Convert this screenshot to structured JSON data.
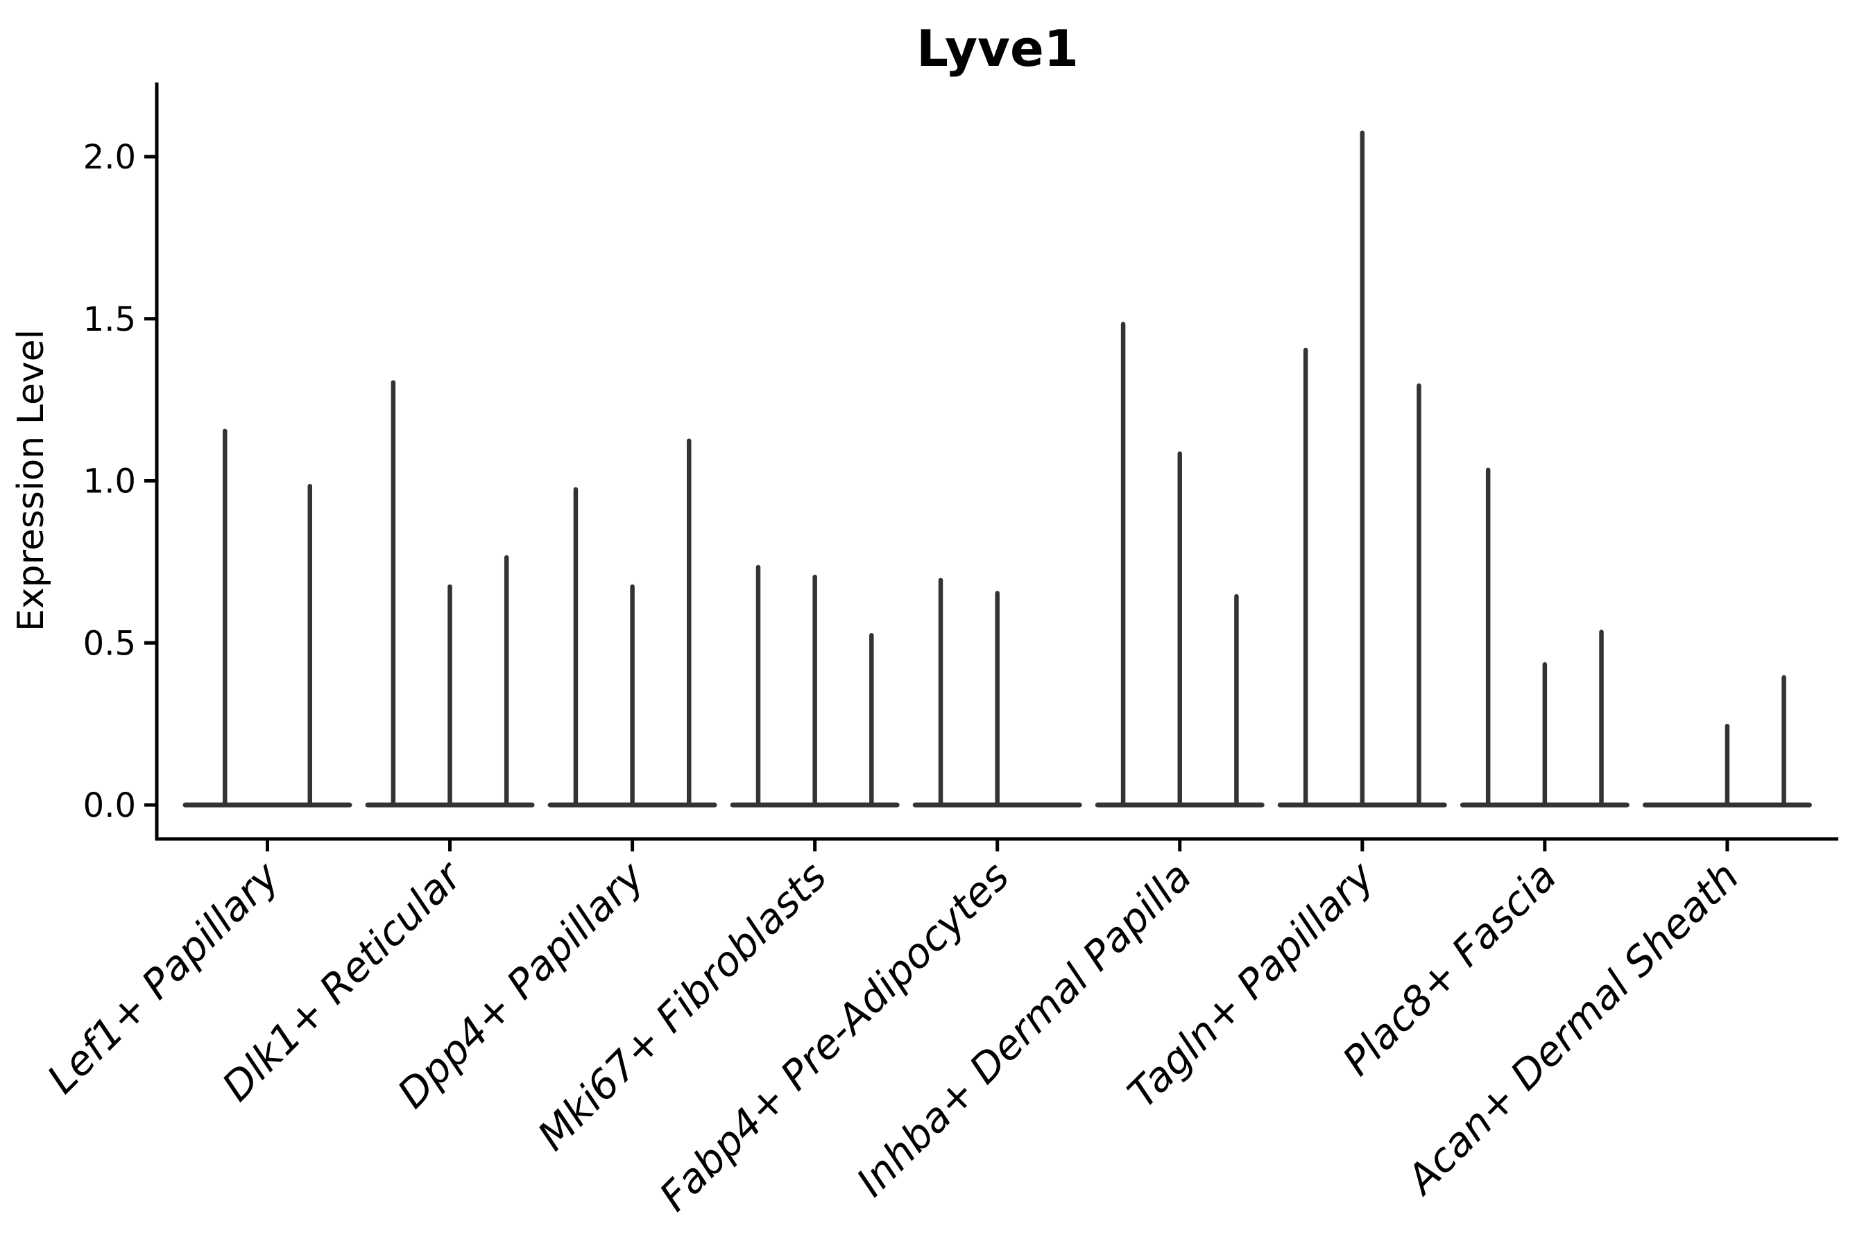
{
  "chart_data": {
    "type": "violin",
    "title": "Lyve1",
    "xlabel": "",
    "ylabel": "Expression Level",
    "ylim": [
      -0.11,
      2.23
    ],
    "yticks": [
      0.0,
      0.5,
      1.0,
      1.5,
      2.0
    ],
    "ytick_labels": [
      "0.0",
      "0.5",
      "1.0",
      "1.5",
      "2.0"
    ],
    "grid": false,
    "legend": "none",
    "categories": [
      "Lef1+ Papillary",
      "Dlk1+ Reticular",
      "Dpp4+ Papillary",
      "Mki67+ Fibroblasts",
      "Fabp4+ Pre-Adipocytes",
      "Inhba+ Dermal Papilla",
      "Tagln+ Papillary",
      "Plac8+ Fascia",
      "Acan+ Dermal Sheath"
    ],
    "groups": [
      {
        "category": "Lef1+ Papillary",
        "slots": 2,
        "violins": [
          {
            "slot": 0,
            "max": 1.16
          },
          {
            "slot": 1,
            "max": 0.99
          }
        ]
      },
      {
        "category": "Dlk1+ Reticular",
        "slots": 3,
        "violins": [
          {
            "slot": 0,
            "max": 1.31
          },
          {
            "slot": 1,
            "max": 0.68
          },
          {
            "slot": 2,
            "max": 0.77
          }
        ]
      },
      {
        "category": "Dpp4+ Papillary",
        "slots": 3,
        "violins": [
          {
            "slot": 0,
            "max": 0.98
          },
          {
            "slot": 1,
            "max": 0.68
          },
          {
            "slot": 2,
            "max": 1.13
          }
        ]
      },
      {
        "category": "Mki67+ Fibroblasts",
        "slots": 3,
        "violins": [
          {
            "slot": 0,
            "max": 0.74
          },
          {
            "slot": 1,
            "max": 0.71
          },
          {
            "slot": 2,
            "max": 0.53
          }
        ]
      },
      {
        "category": "Fabp4+ Pre-Adipocytes",
        "slots": 3,
        "violins": [
          {
            "slot": 0,
            "max": 0.7
          },
          {
            "slot": 1,
            "max": 0.66
          }
        ]
      },
      {
        "category": "Inhba+ Dermal Papilla",
        "slots": 3,
        "violins": [
          {
            "slot": 0,
            "max": 1.49
          },
          {
            "slot": 1,
            "max": 1.09
          },
          {
            "slot": 2,
            "max": 0.65
          }
        ]
      },
      {
        "category": "Tagln+ Papillary",
        "slots": 3,
        "violins": [
          {
            "slot": 0,
            "max": 1.41
          },
          {
            "slot": 1,
            "max": 2.08
          },
          {
            "slot": 2,
            "max": 1.3
          }
        ]
      },
      {
        "category": "Plac8+ Fascia",
        "slots": 3,
        "violins": [
          {
            "slot": 0,
            "max": 1.04
          },
          {
            "slot": 1,
            "max": 0.44
          },
          {
            "slot": 2,
            "max": 0.54
          }
        ]
      },
      {
        "category": "Acan+ Dermal Sheath",
        "slots": 3,
        "violins": [
          {
            "slot": 1,
            "max": 0.25
          },
          {
            "slot": 2,
            "max": 0.4
          }
        ]
      }
    ],
    "colors": {
      "background": "#ffffff",
      "axis": "#000000",
      "text": "#000000",
      "violin": "#333333"
    }
  }
}
